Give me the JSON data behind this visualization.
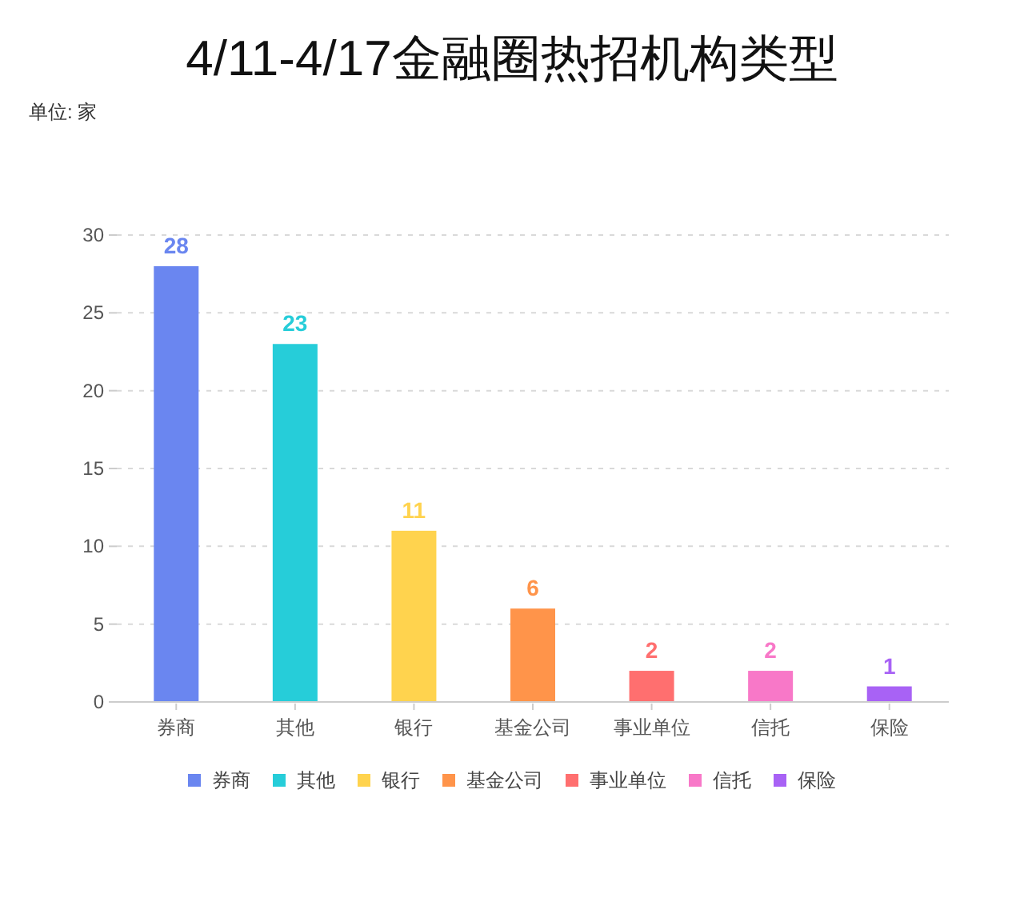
{
  "chart_data": {
    "type": "bar",
    "stacked": true,
    "title": "4/11-4/17金融圈热招机构类型",
    "annotations": [
      "单位: 家"
    ],
    "categories": [
      "券商",
      "其他",
      "银行",
      "基金公司",
      "事业单位",
      "信托",
      "保险"
    ],
    "series": [
      {
        "name": "券商",
        "color": "#6a86f0",
        "values": [
          28,
          null,
          null,
          null,
          null,
          null,
          null
        ]
      },
      {
        "name": "其他",
        "color": "#26cdd9",
        "values": [
          null,
          23,
          null,
          null,
          null,
          null,
          null
        ]
      },
      {
        "name": "银行",
        "color": "#ffd34e",
        "values": [
          null,
          null,
          11,
          null,
          null,
          null,
          null
        ]
      },
      {
        "name": "基金公司",
        "color": "#ff944a",
        "values": [
          null,
          null,
          null,
          6,
          null,
          null,
          null
        ]
      },
      {
        "name": "事业单位",
        "color": "#ff6f6f",
        "values": [
          null,
          null,
          null,
          null,
          2,
          null,
          null
        ]
      },
      {
        "name": "信托",
        "color": "#f878c8",
        "values": [
          null,
          null,
          null,
          null,
          null,
          2,
          null
        ]
      },
      {
        "name": "保险",
        "color": "#a862f5",
        "values": [
          null,
          null,
          null,
          null,
          null,
          null,
          1
        ]
      }
    ],
    "ylim": [
      0,
      30
    ],
    "yticks": [
      0,
      5,
      10,
      15,
      20,
      25,
      30
    ],
    "grid": "y",
    "legend": "bottom",
    "data_labels": true
  }
}
